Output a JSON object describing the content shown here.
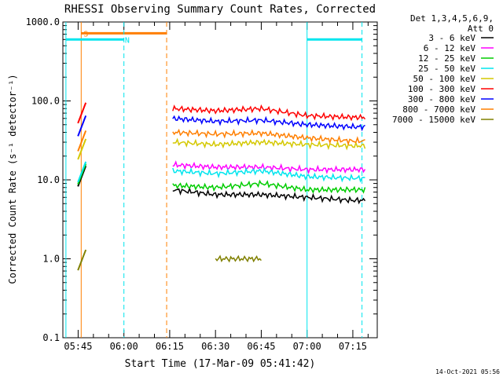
{
  "chart_data": {
    "type": "line",
    "title": "RHESSI Observing Summary Count Rates, Corrected",
    "xlabel": "Start Time (17-Mar-09 05:41:42)",
    "ylabel": "Corrected Count Rate (s⁻¹ detector⁻¹)",
    "y_scale": "log",
    "ylim": [
      0.1,
      1000
    ],
    "xlim": [
      "05:40",
      "07:23"
    ],
    "x_tick_labels": [
      "05:45",
      "06:00",
      "06:15",
      "06:30",
      "06:45",
      "07:00",
      "07:15"
    ],
    "y_tick_labels": [
      "0.1",
      "1.0",
      "10.0",
      "100.0",
      "1000.0"
    ],
    "legend_header": [
      "Det 1,3,4,5,6,9,",
      "Att 0"
    ],
    "legend_position": "right",
    "timestamp": "14-Oct-2021 05:56",
    "x": [
      "05:47",
      "06:16",
      "06:30",
      "06:45",
      "07:00",
      "07:15",
      "07:19"
    ],
    "series": [
      {
        "name": "3 - 6 keV",
        "color": "#000000",
        "values": [
          15,
          7.5,
          6.5,
          6.5,
          6,
          5.5,
          5.5
        ]
      },
      {
        "name": "6 - 12 keV",
        "color": "#ff00ff",
        "values": [
          null,
          15.5,
          14.5,
          14.5,
          13.5,
          13.5,
          13.5
        ]
      },
      {
        "name": "12 - 25 keV",
        "color": "#00cc00",
        "values": [
          16,
          8.5,
          8,
          9,
          7.5,
          7.5,
          7.5
        ]
      },
      {
        "name": "25 - 50 keV",
        "color": "#00e5ee",
        "values": [
          17,
          13,
          12,
          13,
          11,
          10.5,
          10.5
        ]
      },
      {
        "name": "50 - 100 keV",
        "color": "#d4c800",
        "values": [
          33,
          30,
          28,
          30,
          28,
          27,
          27
        ]
      },
      {
        "name": "100 - 300 keV",
        "color": "#ff0000",
        "values": [
          95,
          80,
          75,
          80,
          65,
          62,
          62
        ]
      },
      {
        "name": "300 - 800 keV",
        "color": "#0000ff",
        "values": [
          65,
          60,
          55,
          57,
          50,
          47,
          47
        ]
      },
      {
        "name": "800 - 7000 keV",
        "color": "#ff7f00",
        "values": [
          42,
          40,
          38,
          39,
          34,
          31,
          31
        ]
      },
      {
        "name": "7000 - 15000 keV",
        "color": "#808000",
        "values": [
          1.3,
          null,
          1.0,
          1.0,
          null,
          null,
          null
        ]
      }
    ],
    "flags": [
      {
        "label": "S",
        "color": "#ff7f00",
        "start": "05:46",
        "end": "06:14"
      },
      {
        "label": "N",
        "color": "#00e5ee",
        "start": "05:41",
        "end": "06:00"
      },
      {
        "label": "",
        "color": "#00e5ee",
        "start": "07:00",
        "end": "07:18"
      }
    ],
    "grid": false
  }
}
